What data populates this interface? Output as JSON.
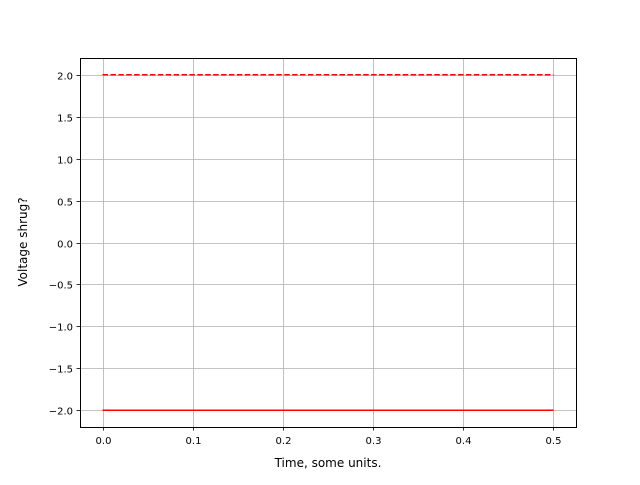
{
  "chart_data": {
    "type": "line",
    "title": "",
    "xlabel": "Time, some units.",
    "ylabel": "Voltage shrug?",
    "xlim": [
      -0.025,
      0.525
    ],
    "ylim": [
      -2.2,
      2.2
    ],
    "grid": true,
    "xticks": [
      0.0,
      0.1,
      0.2,
      0.3,
      0.4,
      0.5
    ],
    "xtick_labels": [
      "0.0",
      "0.1",
      "0.2",
      "0.3",
      "0.4",
      "0.5"
    ],
    "yticks": [
      2.0,
      1.5,
      1.0,
      0.5,
      0.0,
      -0.5,
      -1.0,
      -1.5,
      -2.0
    ],
    "ytick_labels": [
      "2.0",
      "1.5",
      "1.0",
      "0.5",
      "0.0",
      "−0.5",
      "−1.0",
      "−1.5",
      "−2.0"
    ],
    "series": [
      {
        "x": [
          0.0,
          0.5
        ],
        "y": [
          2.0,
          2.0
        ],
        "color": "#ff0000",
        "style": "dashed"
      },
      {
        "x": [
          0.0,
          0.5
        ],
        "y": [
          -2.0,
          -2.0
        ],
        "color": "#ff0000",
        "style": "solid"
      }
    ]
  }
}
